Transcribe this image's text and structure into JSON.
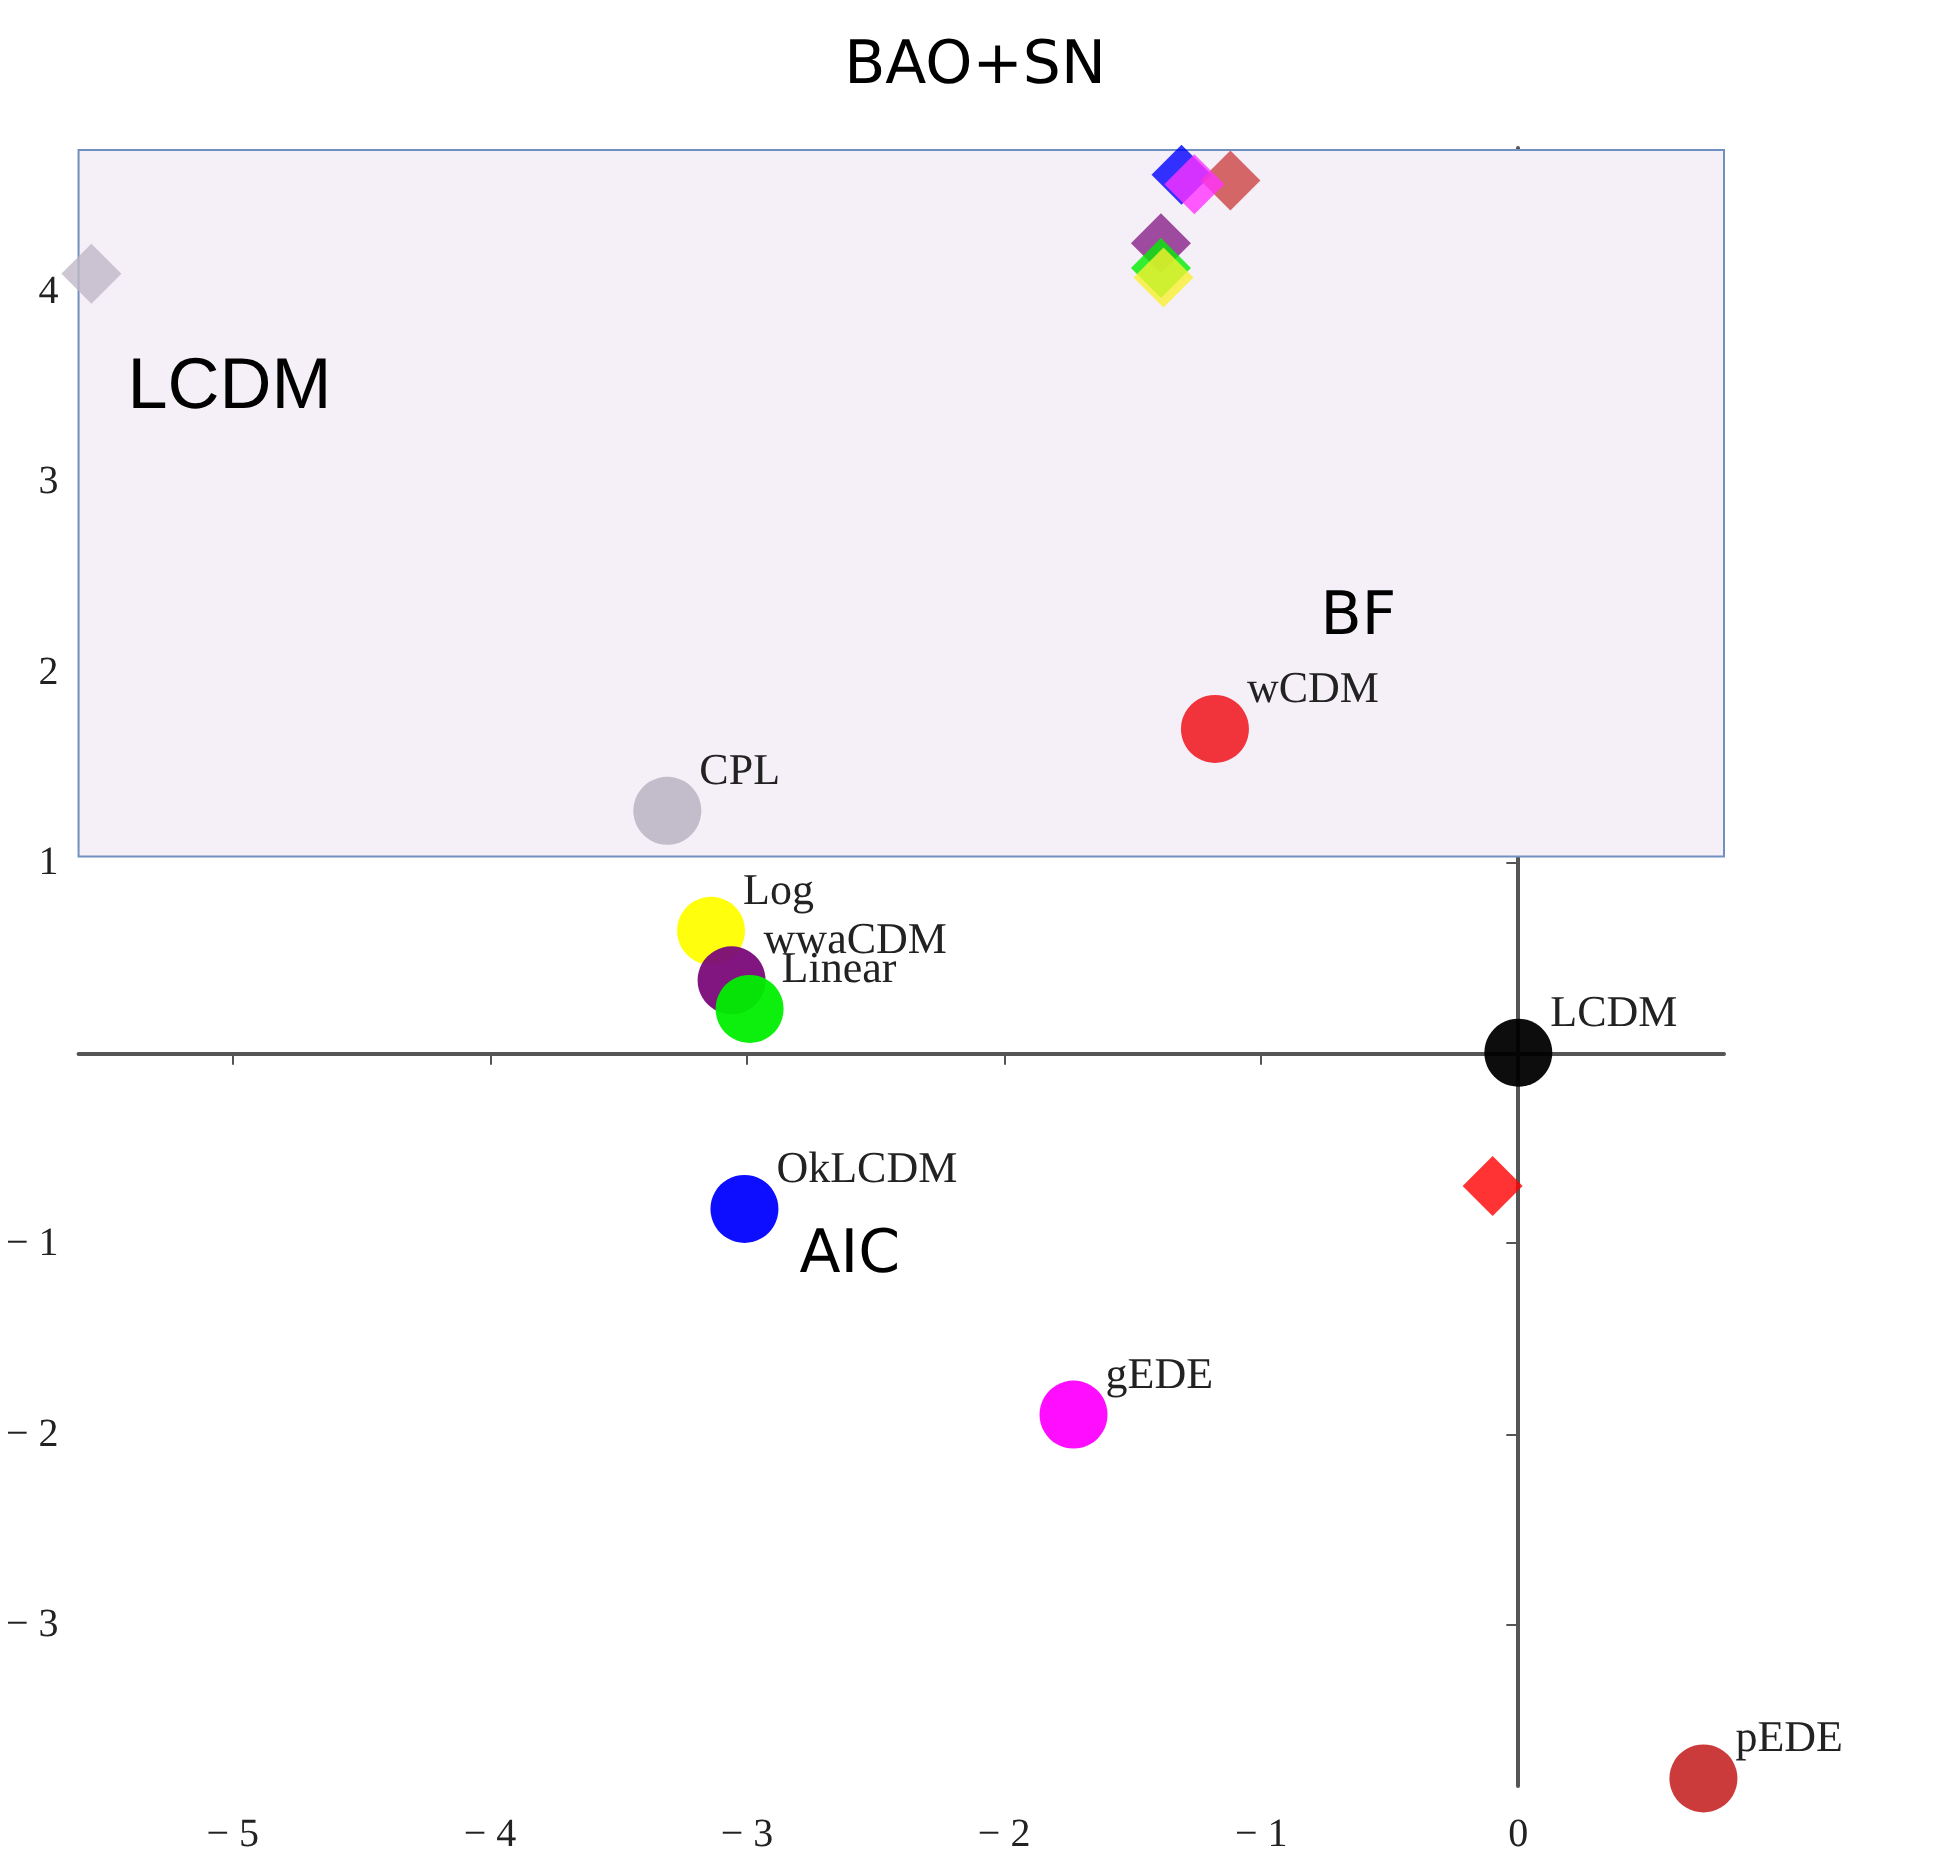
{
  "chart_data": {
    "type": "scatter",
    "title": "BAO+SN",
    "xlabel": "AIC",
    "ylabel": "BF",
    "xlim": [
      -5.6,
      0.8
    ],
    "ylim": [
      -3.85,
      4.75
    ],
    "xticks": [
      -5,
      -4,
      -3,
      -2,
      -1,
      0
    ],
    "yticks": [
      -3,
      -2,
      -1,
      1,
      2,
      3,
      4
    ],
    "bands": [
      {
        "axis": "y",
        "from": 1.03,
        "to": 4.74,
        "label": "LCDM",
        "color": "#f5eff8"
      }
    ],
    "series": [
      {
        "marker": "circle",
        "x": [
          -3.31,
          -1.18,
          -3.14,
          -3.06,
          -2.99,
          0,
          -3.01,
          -1.73,
          0.72
        ],
        "values": [
          1.27,
          1.7,
          0.64,
          0.38,
          0.23,
          0,
          -0.82,
          -1.9,
          -3.81
        ],
        "colors": [
          "#c0b8c8",
          "#f02830",
          "#ffff00",
          "#7a0a7a",
          "#00ee00",
          "#000000",
          "#0000ff",
          "#ff00ff",
          "#c83030"
        ]
      },
      {
        "marker": "diamond",
        "x": [
          -0.1,
          -1.31,
          -1.12,
          -1.26,
          -1.39,
          -1.39,
          -1.38,
          -5.55
        ],
        "values": [
          -0.7,
          4.61,
          4.58,
          4.56,
          4.25,
          4.12,
          4.07,
          4.09
        ],
        "colors": [
          "#ff0000",
          "#0000ff",
          "#cc4444",
          "#ff33ff",
          "#882288",
          "#00ee00",
          "#f8f030",
          "#c0b8c8"
        ]
      }
    ],
    "annotations": [
      {
        "text": "CPL",
        "x": -3.31,
        "y": 1.27
      },
      {
        "text": "wCDM",
        "x": -1.18,
        "y": 1.7
      },
      {
        "text": "Log",
        "x": -3.14,
        "y": 0.64
      },
      {
        "text": "wwaCDM",
        "x": -3.06,
        "y": 0.38
      },
      {
        "text": "Linear",
        "x": -2.99,
        "y": 0.23
      },
      {
        "text": "LCDM",
        "x": 0,
        "y": 0
      },
      {
        "text": "OkLCDM",
        "x": -3.01,
        "y": -0.82
      },
      {
        "text": "gEDE",
        "x": -1.73,
        "y": -1.9
      },
      {
        "text": "pEDE",
        "x": 0.72,
        "y": -3.81
      }
    ]
  }
}
